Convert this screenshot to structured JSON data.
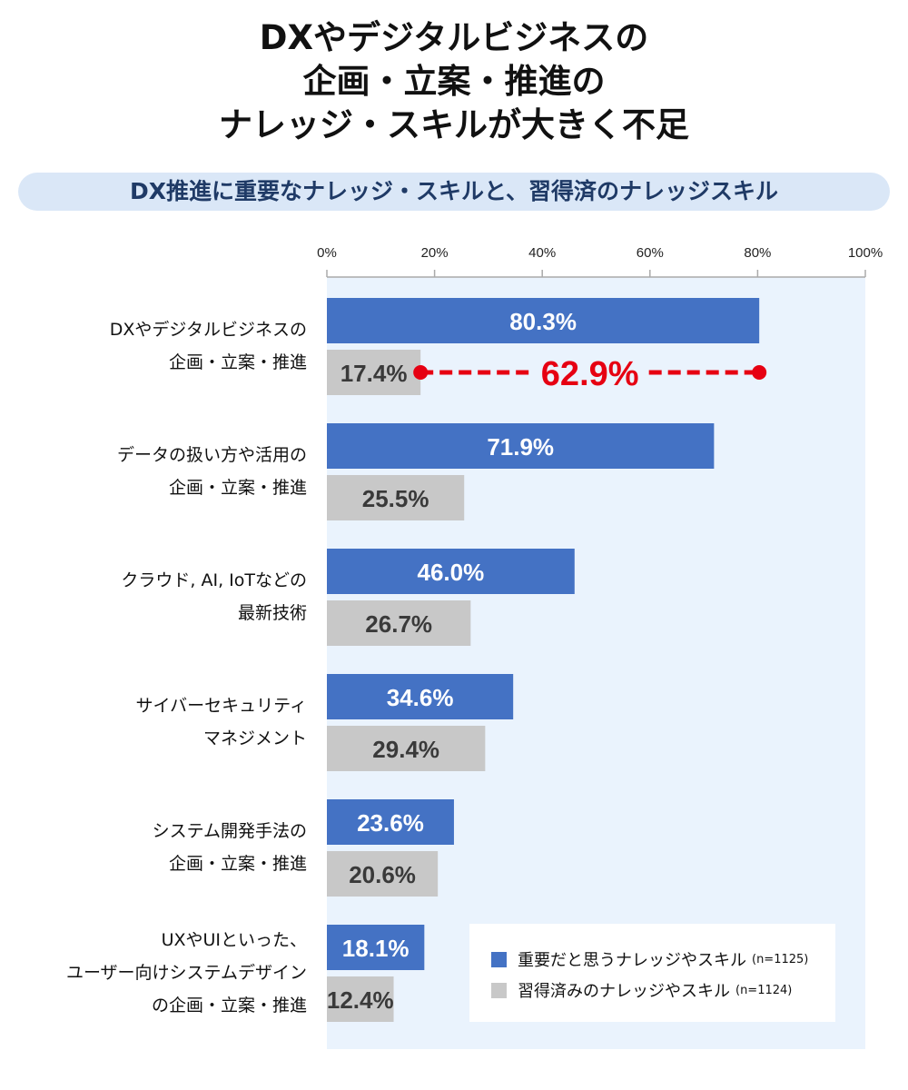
{
  "title": [
    "DXやデジタルビジネスの",
    "企画・立案・推進の",
    "ナレッジ・スキルが大きく不足"
  ],
  "subtitle": "DX推進に重要なナレッジ・スキルと、習得済のナレッジスキル",
  "chart_data": {
    "type": "bar",
    "orientation": "horizontal",
    "xlim": [
      0,
      100
    ],
    "ticks": [
      "0%",
      "20%",
      "40%",
      "60%",
      "80%",
      "100%"
    ],
    "categories": [
      [
        "DXやデジタルビジネスの",
        "企画・立案・推進"
      ],
      [
        "データの扱い方や活用の",
        "企画・立案・推進"
      ],
      [
        "クラウド, AI, IoTなどの",
        "最新技術"
      ],
      [
        "サイバーセキュリティ",
        "マネジメント"
      ],
      [
        "システム開発手法の",
        "企画・立案・推進"
      ],
      [
        "UXやUIといった、",
        "ユーザー向けシステムデザイン",
        "の企画・立案・推進"
      ]
    ],
    "series": [
      {
        "name": "重要だと思うナレッジやスキル",
        "n": "(n=1125)",
        "color": "#4472c4",
        "label_color": "#ffffff",
        "values": [
          80.3,
          71.9,
          46.0,
          34.6,
          23.6,
          18.1
        ]
      },
      {
        "name": "習得済みのナレッジやスキル",
        "n": "(n=1124)",
        "color": "#c8c8c8",
        "label_color": "#3a3a3a",
        "values": [
          17.4,
          25.5,
          26.7,
          29.4,
          20.6,
          12.4
        ]
      }
    ],
    "annotation": {
      "text": "62.9%",
      "category_index": 0,
      "from": 17.4,
      "to": 80.3,
      "color": "#e60012"
    },
    "plot_bg": "#eaf3fd",
    "legend": "bottom-right"
  }
}
